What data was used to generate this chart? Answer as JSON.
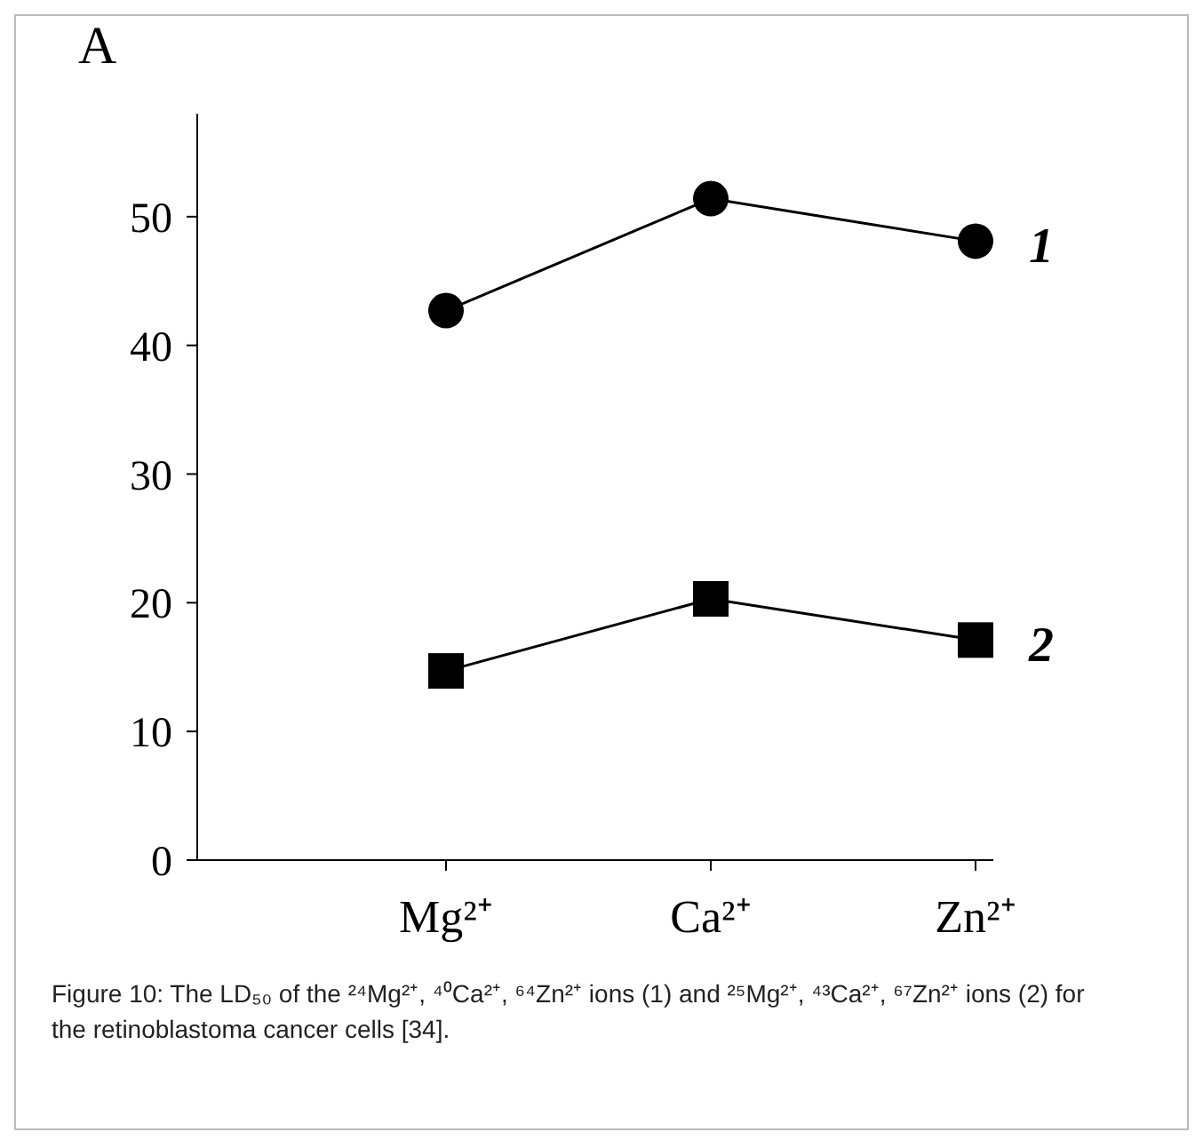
{
  "chart_data": {
    "type": "line",
    "ylabel": "A",
    "categories": [
      "Mg²⁺",
      "Ca²⁺",
      "Zn²⁺"
    ],
    "series": [
      {
        "name": "1",
        "color": "#000000",
        "marker": "circle",
        "values": [
          42.7,
          51.4,
          48.1
        ]
      },
      {
        "name": "2",
        "color": "#000000",
        "marker": "square",
        "values": [
          14.7,
          20.3,
          17.1
        ]
      }
    ],
    "ylim": [
      0,
      58
    ],
    "yticks": [
      0,
      10,
      20,
      30,
      40,
      50
    ],
    "grid": false,
    "legend": false,
    "line_style": "solid",
    "annotations": [
      "Figure 10: The LD₅₀ of the ²⁴Mg²⁺, ⁴⁰Ca²⁺, ⁶⁴Zn²⁺ ions (1) and ²⁵Mg²⁺, ⁴³Ca²⁺, ⁶⁷Zn²⁺ ions (2) for the retinoblastoma cancer cells [34]."
    ]
  }
}
